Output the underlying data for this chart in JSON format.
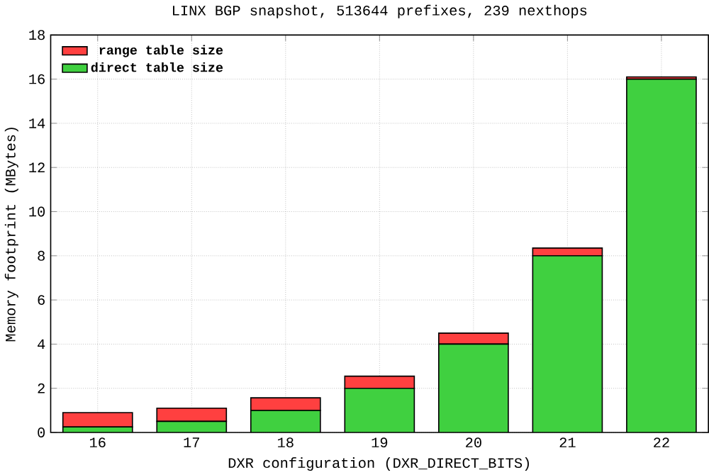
{
  "chart_data": {
    "type": "bar",
    "title": "LINX BGP snapshot, 513644 prefixes, 239 nexthops",
    "xlabel": "DXR configuration (DXR_DIRECT_BITS)",
    "ylabel": "Memory footprint (MBytes)",
    "categories": [
      "16",
      "17",
      "18",
      "19",
      "20",
      "21",
      "22"
    ],
    "stacked": true,
    "series": [
      {
        "name": "direct table size",
        "color": "#40d040",
        "values": [
          0.25,
          0.5,
          1,
          2,
          4,
          8,
          16
        ]
      },
      {
        "name": "range table size",
        "color": "#ff4040",
        "values": [
          0.65,
          0.6,
          0.57,
          0.55,
          0.5,
          0.35,
          0.1
        ]
      }
    ],
    "ylim": [
      0,
      18
    ],
    "yticks": [
      0,
      2,
      4,
      6,
      8,
      10,
      12,
      14,
      16,
      18
    ],
    "grid": true,
    "legend": "top left"
  }
}
